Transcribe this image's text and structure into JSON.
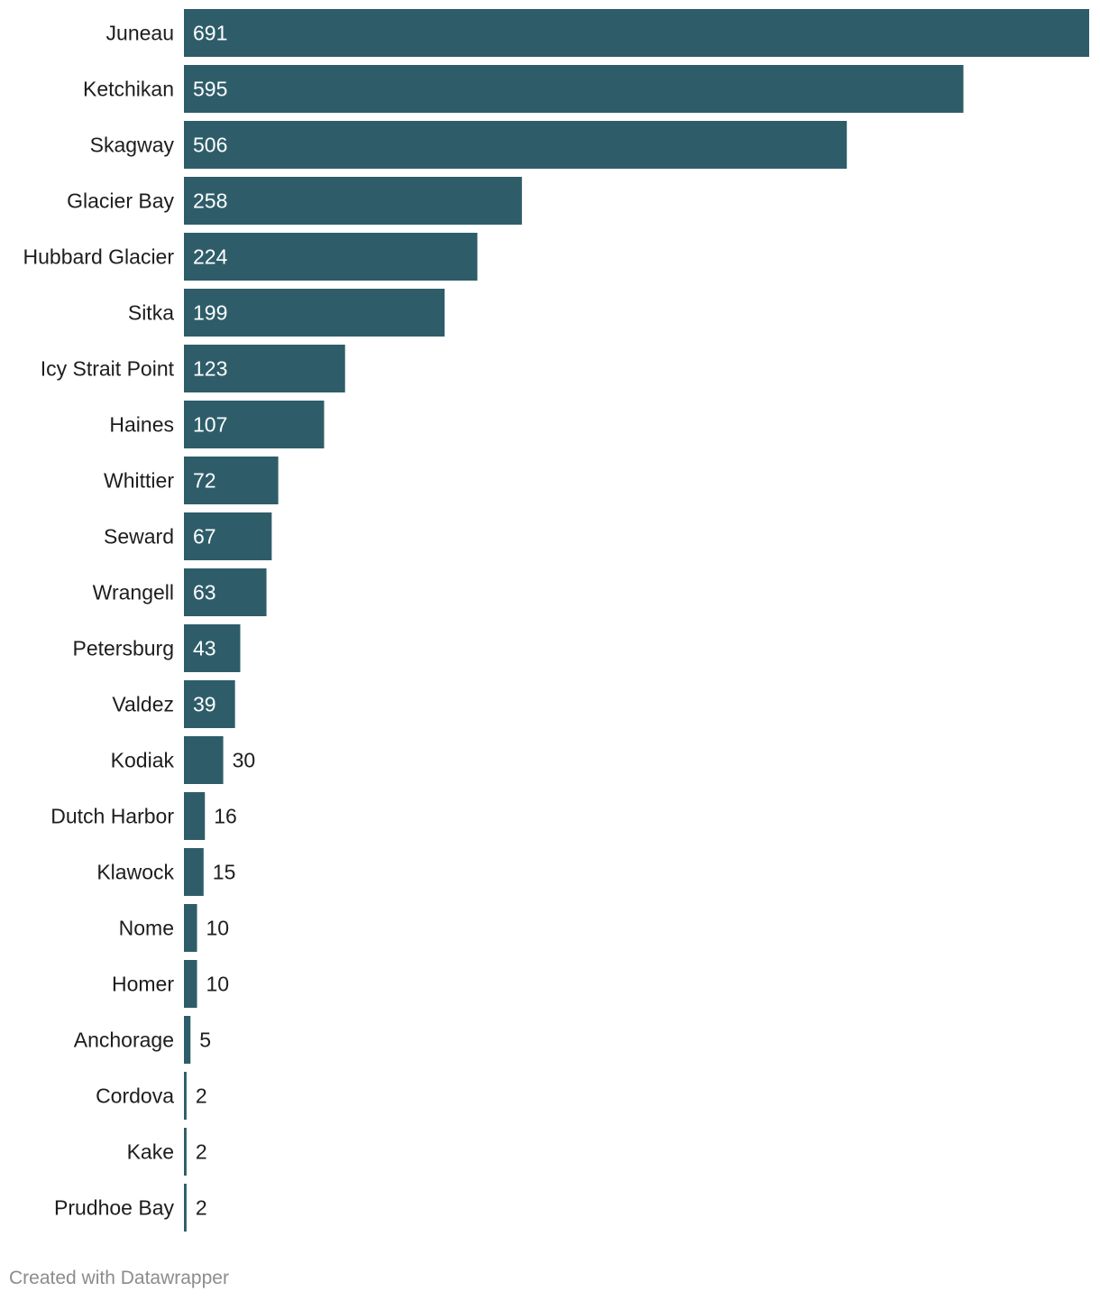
{
  "chart_data": {
    "type": "bar",
    "orientation": "horizontal",
    "categories": [
      "Juneau",
      "Ketchikan",
      "Skagway",
      "Glacier Bay",
      "Hubbard Glacier",
      "Sitka",
      "Icy Strait Point",
      "Haines",
      "Whittier",
      "Seward",
      "Wrangell",
      "Petersburg",
      "Valdez",
      "Kodiak",
      "Dutch Harbor",
      "Klawock",
      "Nome",
      "Homer",
      "Anchorage",
      "Cordova",
      "Kake",
      "Prudhoe Bay"
    ],
    "values": [
      691,
      595,
      506,
      258,
      224,
      199,
      123,
      107,
      72,
      67,
      63,
      43,
      39,
      30,
      16,
      15,
      10,
      10,
      5,
      2,
      2,
      2
    ],
    "xlim": [
      0,
      691
    ],
    "grid": false,
    "bar_color": "#2e5d69"
  },
  "footer": {
    "credit": "Created with Datawrapper"
  }
}
